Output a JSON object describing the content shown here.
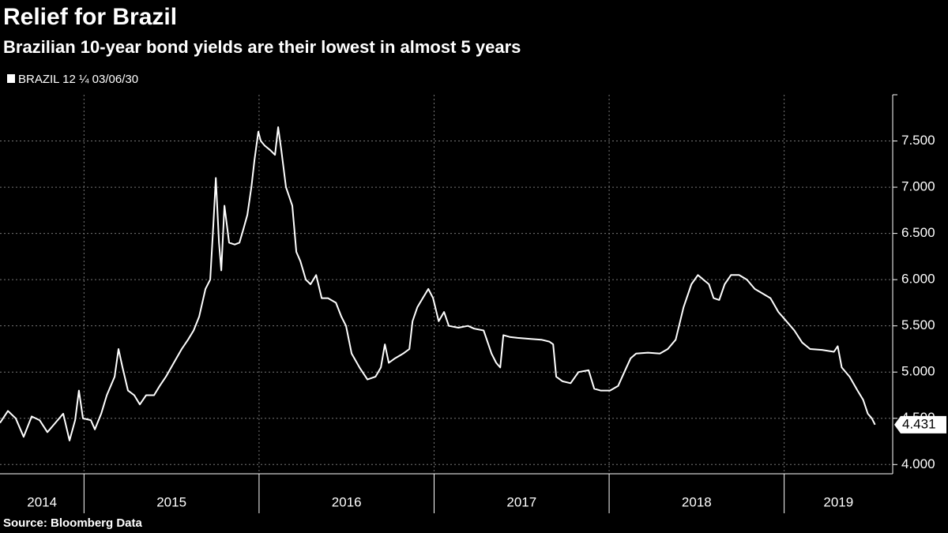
{
  "chart_data": {
    "type": "line",
    "title": "Relief for Brazil",
    "subtitle": "Brazilian 10-year bond yields are their lowest in almost 5 years",
    "source": "Source: Bloomberg Data",
    "x": [
      2014.52,
      2014.565,
      2014.61,
      2014.655,
      2014.701,
      2014.746,
      2014.791,
      2014.836,
      2014.881,
      2014.917,
      2014.949,
      2014.971,
      2014.994,
      2015.039,
      2015.062,
      2015.098,
      2015.13,
      2015.175,
      2015.197,
      2015.22,
      2015.251,
      2015.287,
      2015.319,
      2015.355,
      2015.4,
      2015.432,
      2015.468,
      2015.513,
      2015.558,
      2015.594,
      2015.626,
      2015.658,
      2015.694,
      2015.721,
      2015.739,
      2015.753,
      2015.771,
      2015.784,
      2015.802,
      2015.829,
      2015.861,
      2015.888,
      2015.911,
      2015.933,
      2015.956,
      2015.974,
      2015.996,
      2016.01,
      2016.032,
      2016.064,
      2016.091,
      2016.109,
      2016.127,
      2016.154,
      2016.19,
      2016.213,
      2016.236,
      2016.267,
      2016.294,
      2016.326,
      2016.358,
      2016.394,
      2016.439,
      2016.47,
      2016.497,
      2016.529,
      2016.574,
      2016.619,
      2016.665,
      2016.696,
      2016.719,
      2016.741,
      2016.777,
      2016.823,
      2016.859,
      2016.877,
      2016.904,
      2016.935,
      2016.967,
      2016.994,
      2017.026,
      2017.057,
      2017.084,
      2017.139,
      2017.193,
      2017.229,
      2017.283,
      2017.328,
      2017.355,
      2017.378,
      2017.396,
      2017.432,
      2017.477,
      2017.545,
      2017.613,
      2017.658,
      2017.68,
      2017.698,
      2017.734,
      2017.78,
      2017.825,
      2017.883,
      2017.915,
      2017.951,
      2018.005,
      2018.051,
      2018.087,
      2018.123,
      2018.154,
      2018.222,
      2018.29,
      2018.335,
      2018.38,
      2018.425,
      2018.47,
      2018.507,
      2018.538,
      2018.57,
      2018.597,
      2018.629,
      2018.66,
      2018.696,
      2018.742,
      2018.787,
      2018.832,
      2018.877,
      2018.922,
      2018.967,
      2019.013,
      2019.058,
      2019.103,
      2019.148,
      2019.216,
      2019.284,
      2019.306,
      2019.329,
      2019.374,
      2019.419,
      2019.451,
      2019.478,
      2019.501,
      2019.519
    ],
    "series": [
      {
        "name": "BRAZIL 12 ¼ 03/06/30",
        "color": "#ffffff",
        "values": [
          4.45,
          4.58,
          4.5,
          4.3,
          4.52,
          4.48,
          4.35,
          4.45,
          4.55,
          4.26,
          4.48,
          4.8,
          4.5,
          4.48,
          4.38,
          4.55,
          4.75,
          4.95,
          5.25,
          5.05,
          4.8,
          4.75,
          4.65,
          4.75,
          4.75,
          4.85,
          4.95,
          5.1,
          5.25,
          5.35,
          5.45,
          5.6,
          5.9,
          6.0,
          6.6,
          7.1,
          6.4,
          6.1,
          6.8,
          6.4,
          6.38,
          6.4,
          6.55,
          6.7,
          7.0,
          7.3,
          7.6,
          7.5,
          7.45,
          7.4,
          7.35,
          7.65,
          7.4,
          7.0,
          6.8,
          6.3,
          6.2,
          6.0,
          5.95,
          6.05,
          5.8,
          5.8,
          5.75,
          5.6,
          5.5,
          5.2,
          5.05,
          4.92,
          4.95,
          5.05,
          5.3,
          5.1,
          5.15,
          5.2,
          5.25,
          5.55,
          5.7,
          5.8,
          5.9,
          5.8,
          5.55,
          5.65,
          5.5,
          5.48,
          5.5,
          5.47,
          5.45,
          5.2,
          5.1,
          5.05,
          5.4,
          5.38,
          5.37,
          5.36,
          5.35,
          5.33,
          5.3,
          4.95,
          4.9,
          4.88,
          5.0,
          5.02,
          4.82,
          4.8,
          4.8,
          4.85,
          5.0,
          5.15,
          5.2,
          5.21,
          5.2,
          5.25,
          5.35,
          5.7,
          5.95,
          6.05,
          6.0,
          5.95,
          5.8,
          5.78,
          5.95,
          6.05,
          6.05,
          6.0,
          5.9,
          5.85,
          5.8,
          5.65,
          5.55,
          5.45,
          5.32,
          5.25,
          5.24,
          5.22,
          5.28,
          5.05,
          4.95,
          4.8,
          4.7,
          4.55,
          4.5,
          4.431
        ]
      }
    ],
    "xlim": [
      2014.52,
      2019.62
    ],
    "xticks": [
      2015,
      2016,
      2017,
      2018,
      2019
    ],
    "year_labels": [
      "2014",
      "2015",
      "2016",
      "2017",
      "2018",
      "2019"
    ],
    "ylim": [
      3.9,
      8.0
    ],
    "yticks": [
      {
        "value": 4,
        "label": "4.000"
      },
      {
        "value": 4.5,
        "label": "4.500"
      },
      {
        "value": 5,
        "label": "5.000"
      },
      {
        "value": 5.5,
        "label": "5.500"
      },
      {
        "value": 6,
        "label": "6.000"
      },
      {
        "value": 6.5,
        "label": "6.500"
      },
      {
        "value": 7,
        "label": "7.000"
      },
      {
        "value": 7.5,
        "label": "7.500"
      }
    ],
    "grid": true
  }
}
